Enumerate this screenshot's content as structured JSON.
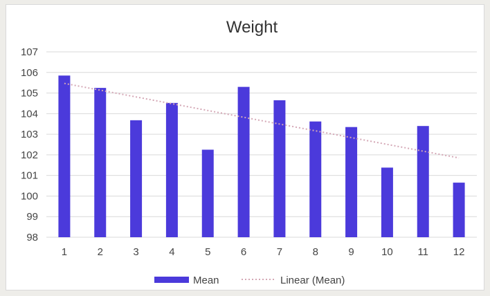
{
  "chart_data": {
    "type": "bar",
    "title": "Weight",
    "categories": [
      "1",
      "2",
      "3",
      "4",
      "5",
      "6",
      "7",
      "8",
      "9",
      "10",
      "11",
      "12"
    ],
    "series": [
      {
        "name": "Mean",
        "values": [
          105.85,
          105.25,
          103.68,
          104.52,
          102.25,
          105.3,
          104.65,
          103.62,
          103.35,
          101.38,
          103.4,
          100.65
        ],
        "color": "#4b3adb"
      }
    ],
    "trendline": {
      "name": "Linear (Mean)",
      "type": "linear",
      "start": 105.47,
      "end": 101.85,
      "color": "#d4a7b5",
      "style": "dotted"
    },
    "ylim": [
      98,
      107
    ],
    "yticks": [
      "98",
      "99",
      "100",
      "101",
      "102",
      "103",
      "104",
      "105",
      "106",
      "107"
    ],
    "grid": true,
    "legend": "bottom"
  }
}
